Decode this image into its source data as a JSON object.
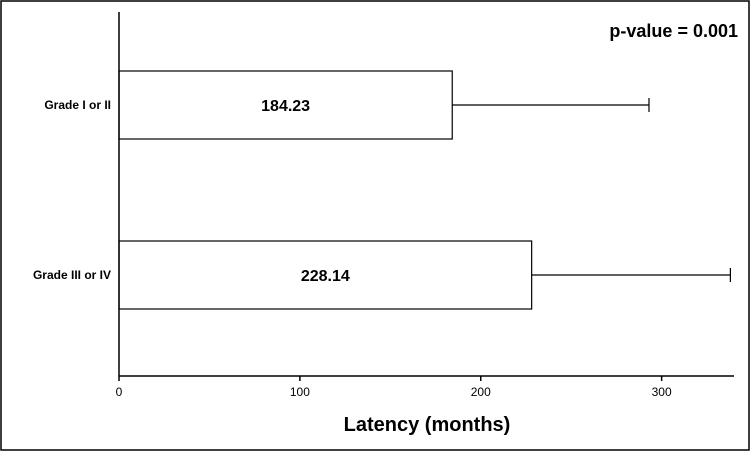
{
  "chart_data": {
    "type": "bar",
    "orientation": "horizontal",
    "categories": [
      "Grade I or II",
      "Grade III or IV"
    ],
    "values": [
      184.23,
      228.14
    ],
    "error_upper": [
      293,
      338
    ],
    "data_labels": [
      "184.23",
      "228.14"
    ],
    "xlabel": "Latency (months)",
    "xlim": [
      0,
      340
    ],
    "xticks": [
      0,
      100,
      200,
      300
    ],
    "xtick_labels": [
      "0",
      "100",
      "200",
      "300"
    ],
    "annotation": "p-value =  0.001",
    "grid": false
  }
}
